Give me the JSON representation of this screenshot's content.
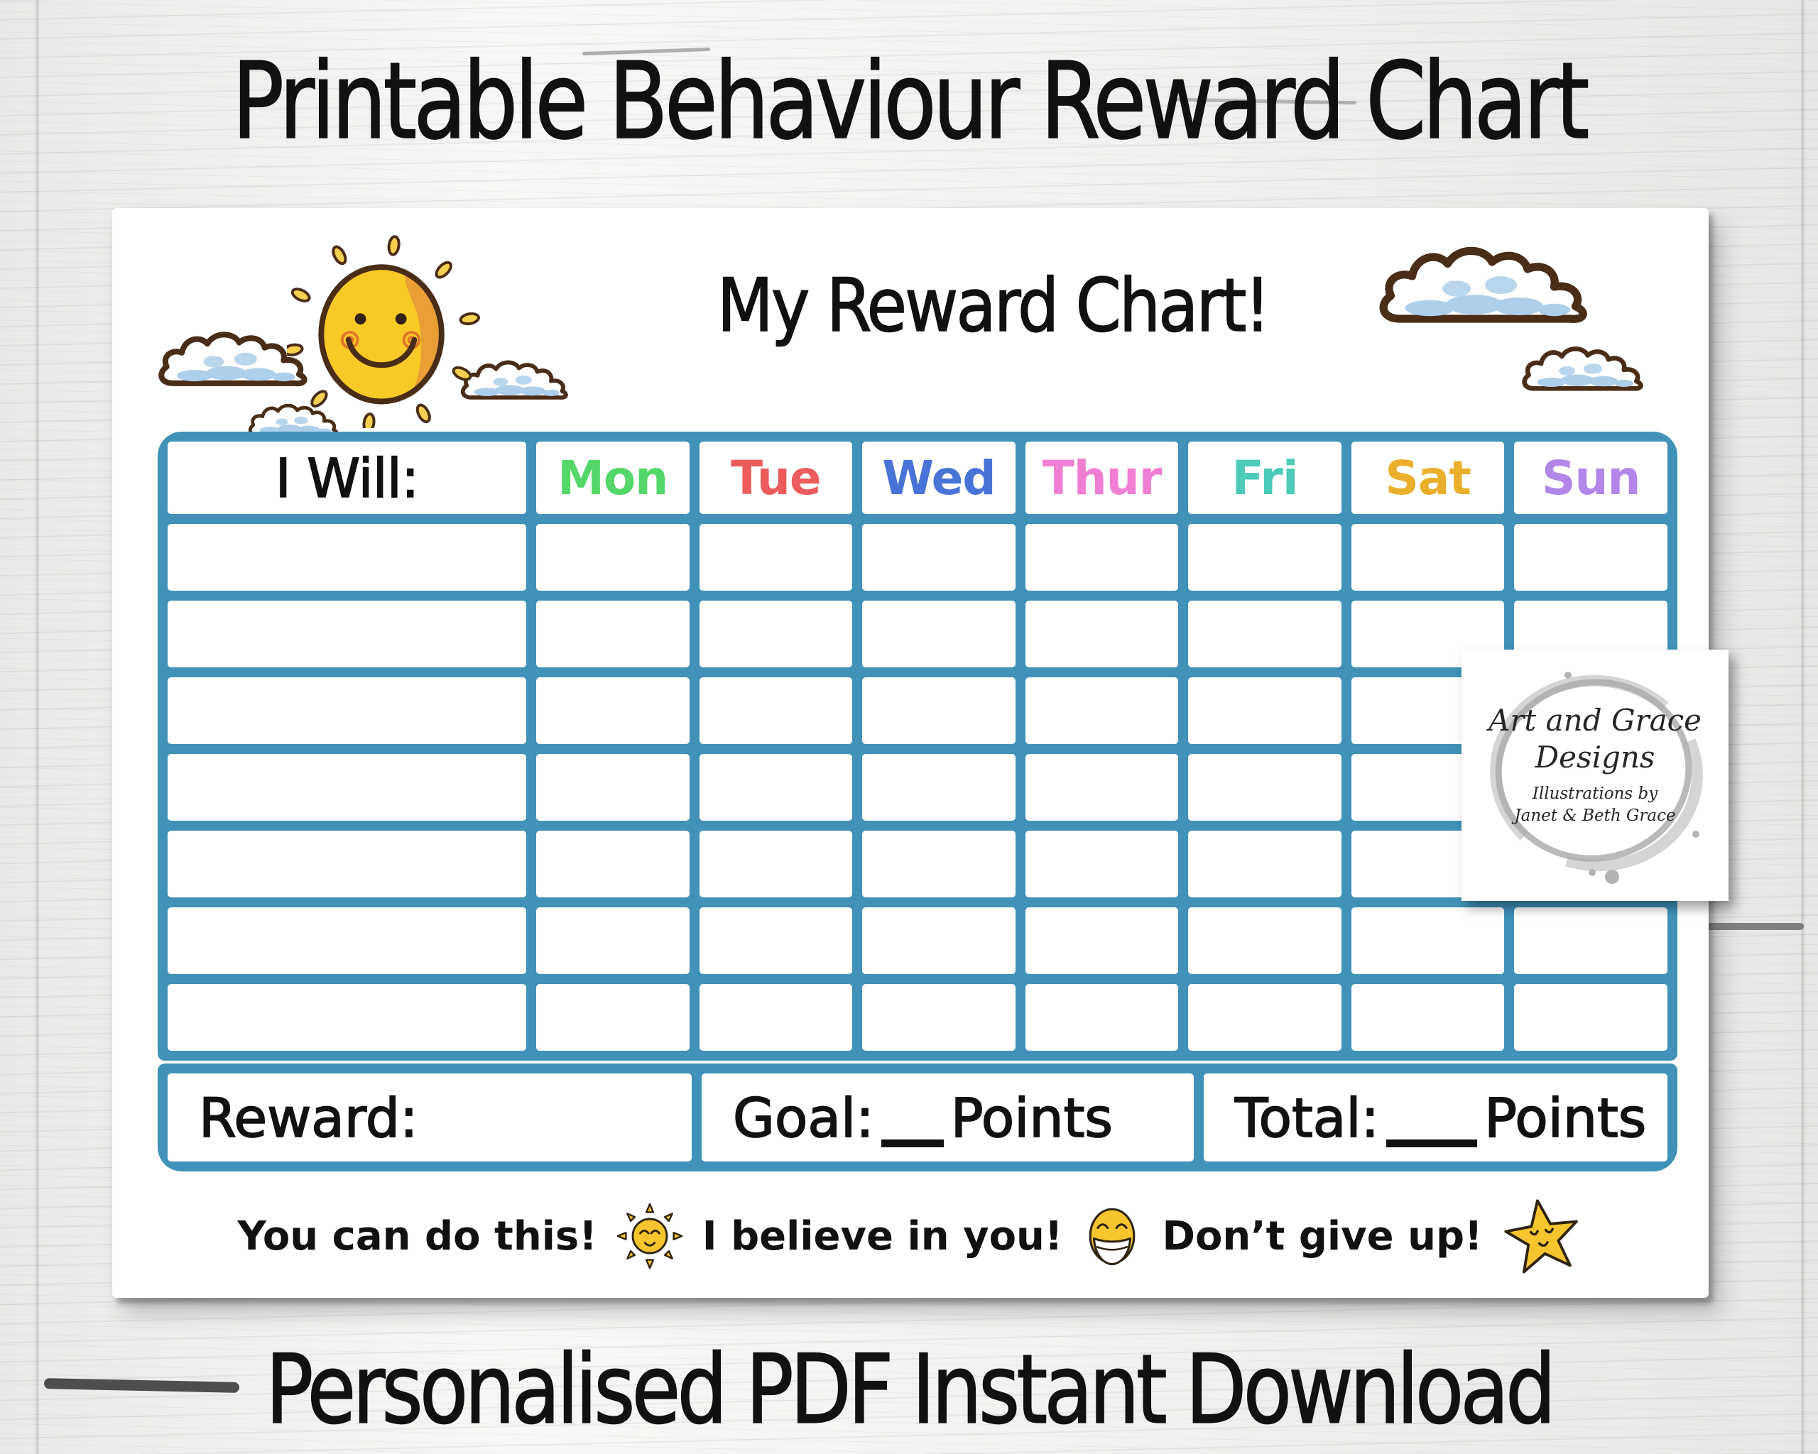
{
  "header": {
    "title": "Printable Behaviour Reward Chart"
  },
  "bottom_caption": {
    "text": "Personalised PDF Instant Download"
  },
  "chart": {
    "title": "My Reward Chart!",
    "table": {
      "first_column_header": "I Will:",
      "days": [
        {
          "label": "Mon",
          "color": "#53d769"
        },
        {
          "label": "Tue",
          "color": "#ec5c5c"
        },
        {
          "label": "Wed",
          "color": "#4a73d8"
        },
        {
          "label": "Thur",
          "color": "#f07ed2"
        },
        {
          "label": "Fri",
          "color": "#4dcab8"
        },
        {
          "label": "Sat",
          "color": "#e9af2d"
        },
        {
          "label": "Sun",
          "color": "#b386e9"
        }
      ],
      "empty_rows": 7,
      "footer_cells": {
        "reward_label": "Reward:",
        "goal_label": "Goal:",
        "goal_points_suffix": "Points",
        "total_label": "Total:",
        "total_points_suffix": "Points"
      }
    },
    "encouragements": [
      {
        "text": "You can do this!",
        "icon": "sun-icon"
      },
      {
        "text": "I believe in you!",
        "icon": "grinning-face-icon"
      },
      {
        "text": "Don’t give up!",
        "icon": "star-icon"
      }
    ]
  },
  "watermark": {
    "line1": "Art and Grace",
    "line2": "Designs",
    "line3": "Illustrations by",
    "line4": "Janet & Beth Grace"
  },
  "colors": {
    "table_border": "#4191b8",
    "sun_yellow": "#f8ca25",
    "sun_orange": "#e8973a",
    "outline_brown": "#4a2c17",
    "cloud_blue": "#aecfec",
    "emoji_yellow": "#f7c52e",
    "text_black": "#111111"
  }
}
